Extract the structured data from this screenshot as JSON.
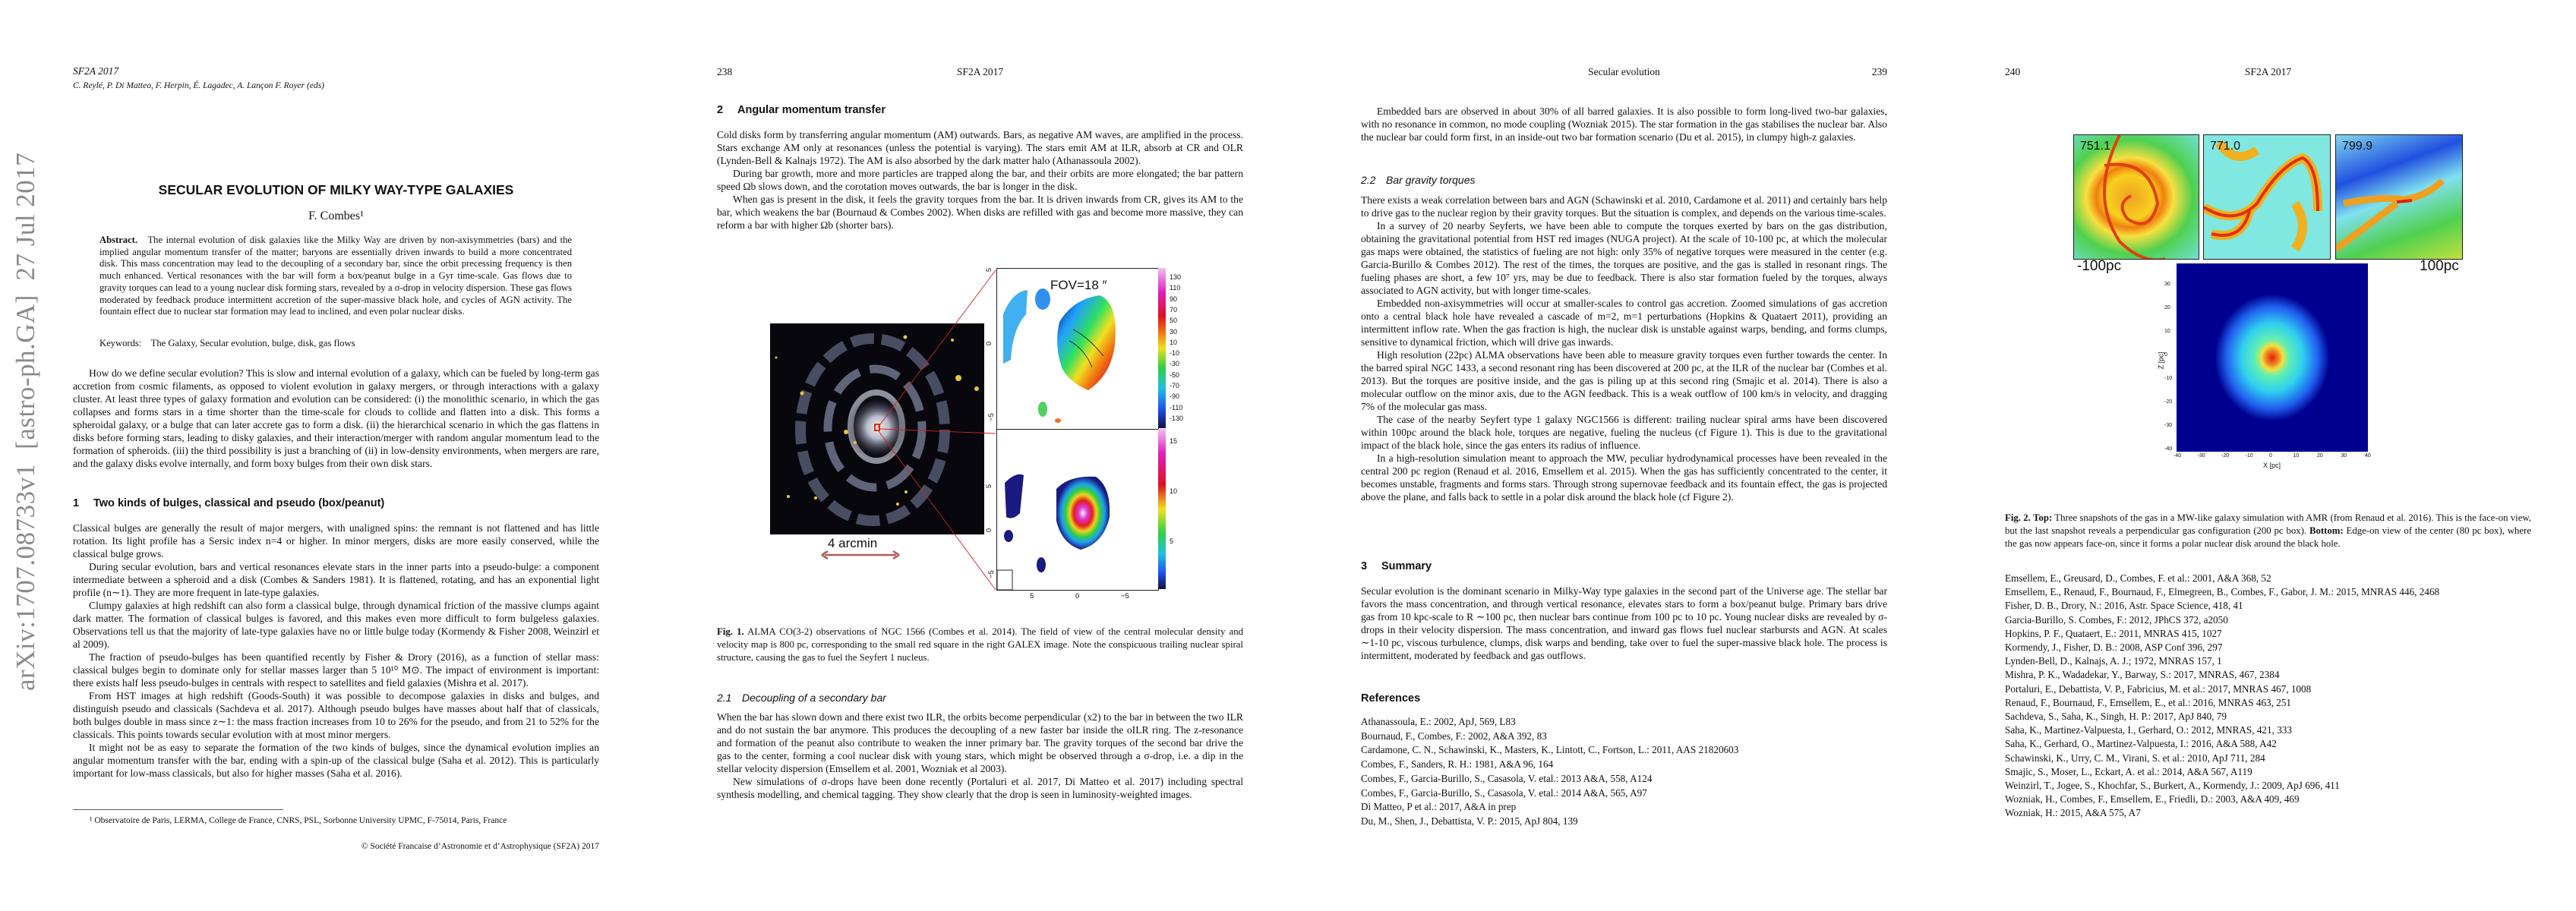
{
  "sidebar": {
    "arxiv_stamp": "arXiv:1707.08733v1  [astro-ph.GA]  27 Jul 2017"
  },
  "page1": {
    "running_head": "SF2A 2017",
    "editors": "C. Reylé, P. Di Matteo, F. Herpin, É. Lagadec, A. Lançon F. Royer (eds)",
    "title": "SECULAR EVOLUTION OF MILKY WAY-TYPE GALAXIES",
    "author": "F. Combes¹",
    "abstract_label": "Abstract.",
    "abstract": "The internal evolution of disk galaxies like the Milky Way are driven by non-axisymmetries (bars) and the implied angular momentum transfer of the matter; baryons are essentially driven inwards to build a more concentrated disk. This mass concentration may lead to the decoupling of a secondary bar, since the orbit precessing frequency is then much enhanced. Vertical resonances with the bar will form a box/peanut bulge in a Gyr time-scale. Gas flows due to gravity torques can lead to a young nuclear disk forming stars, revealed by a σ-drop in velocity dispersion. These gas flows moderated by feedback produce intermittent accretion of the super-massive black hole, and cycles of AGN activity. The fountain effect due to nuclear star formation may lead to inclined, and even polar nuclear disks.",
    "keywords_label": "Keywords:",
    "keywords": "The Galaxy, Secular evolution, bulge, disk, gas flows",
    "intro": "How do we define secular evolution? This is slow and internal evolution of a galaxy, which can be fueled by long-term gas accretion from cosmic filaments, as opposed to violent evolution in galaxy mergers, or through interactions with a galaxy cluster. At least three types of galaxy formation and evolution can be considered: (i) the monolithic scenario, in which the gas collapses and forms stars in a time shorter than the time-scale for clouds to collide and flatten into a disk. This forms a spheroidal galaxy, or a bulge that can later accrete gas to form a disk. (ii) the hierarchical scenario in which the gas flattens in disks before forming stars, leading to disky galaxies, and their interaction/merger with random angular momentum lead to the formation of spheroids. (iii) the third possibility is just a branching of (ii) in low-density environments, when mergers are rare, and the galaxy disks evolve internally, and form boxy bulges from their own disk stars.",
    "section1": {
      "number": "1",
      "title": "Two kinds of bulges, classical and pseudo (box/peanut)",
      "paragraphs": [
        "Classical bulges are generally the result of major mergers, with unaligned spins: the remnant is not flattened and has little rotation. Its light profile has a Sersic index n=4 or higher. In minor mergers, disks are more easily conserved, while the classical bulge grows.",
        "During secular evolution, bars and vertical resonances elevate stars in the inner parts into a pseudo-bulge: a component intermediate between a spheroid and a disk (Combes & Sanders 1981). It is flattened, rotating, and has an exponential light profile (n∼1). They are more frequent in late-type galaxies.",
        "Clumpy galaxies at high redshift can also form a classical bulge, through dynamical friction of the massive clumps againt dark matter. The formation of classical bulges is favored, and this makes even more difficult to form bulgeless galaxies. Observations tell us that the majority of late-type galaxies have no or little bulge today (Kormendy & Fisher 2008, Weinzirl et al 2009).",
        "The fraction of pseudo-bulges has been quantified recently by Fisher & Drory (2016), as a function of stellar mass: classical bulges begin to dominate only for stellar masses larger than 5 10¹⁰ M⊙. The impact of environment is important: there exists half less pseudo-bulges in centrals with respect to satellites and field galaxies (Mishra et al. 2017).",
        "From HST images at high redshift (Goods-South) it was possible to decompose galaxies in disks and bulges, and distinguish pseudo and classicals (Sachdeva et al. 2017). Although pseudo bulges have masses about half that of classicals, both bulges double in mass since z∼1: the mass fraction increases from 10 to 26% for the pseudo, and from 21 to 52% for the classicals. This points towards secular evolution with at most minor mergers.",
        "It might not be as easy to separate the formation of the two kinds of bulges, since the dynamical evolution implies an angular momentum transfer with the bar, ending with a spin-up of the classical bulge (Saha et al. 2012). This is particularly important for low-mass classicals, but also for higher masses (Saha et al. 2016)."
      ]
    },
    "footnote": "¹ Observatoire de Paris, LERMA, College de France, CNRS, PSL, Sorbonne University UPMC, F-75014, Paris, France",
    "copyright": "© Société Francaise d’Astronomie et d’Astrophysique (SF2A) 2017"
  },
  "page2": {
    "page_number": "238",
    "running_head": "SF2A 2017",
    "section2": {
      "number": "2",
      "title": "Angular momentum transfer",
      "paragraphs": [
        "Cold disks form by transferring angular momentum (AM) outwards. Bars, as negative AM waves, are amplified in the process. Stars exchange AM only at resonances (unless the potential is varying). The stars emit AM at ILR, absorb at CR and OLR (Lynden-Bell & Kalnajs 1972). The AM is also absorbed by the dark matter halo (Athanassoula 2002).",
        "During bar growth, more and more particles are trapped along the bar, and their orbits are more elongated; the bar pattern speed Ωb slows down, and the corotation moves outwards, the bar is longer in the disk.",
        "When gas is present in the disk, it feels the gravity torques from the bar. It is driven inwards from CR, gives its AM to the bar, which weakens the bar (Bournaud & Combes 2002). When disks are refilled with gas and become more massive, they can reform a bar with higher Ωb (shorter bars)."
      ]
    },
    "figure1": {
      "fov_label": "FOV=18 ″",
      "scale_label": "4 arcmin",
      "velocity_colorbar": [
        "130",
        "110",
        "90",
        "70",
        "50",
        "30",
        "10",
        "-10",
        "-30",
        "-50",
        "-70",
        "-90",
        "-110",
        "-130"
      ],
      "density_colorbar": [
        "15",
        "10",
        "5"
      ],
      "top_y_ticks": [
        "5",
        "0",
        "−5"
      ],
      "bottom_y_ticks": [
        "5",
        "0",
        "−5"
      ],
      "x_ticks": [
        "5",
        "0",
        "−5"
      ],
      "caption_label": "Fig. 1.",
      "caption": "ALMA CO(3-2) observations of NGC 1566 (Combes et al. 2014). The field of view of the central molecular density and velocity map is 800 pc, corresponding to the small red square in the right GALEX image. Note the conspicuous trailing nuclear spiral structure, causing the gas to fuel the Seyfert 1 nucleus."
    },
    "section2_1": {
      "number": "2.1",
      "title": "Decoupling of a secondary bar",
      "paragraphs": [
        "When the bar has slown down and there exist two ILR, the orbits become perpendicular (x2) to the bar in between the two ILR and do not sustain the bar anymore. This produces the decoupling of a new faster bar inside the oILR ring. The z-resonance and formation of the peanut also contribute to weaken the inner primary bar. The gravity torques of the second bar drive the gas to the center, forming a cool nuclear disk with young stars, which might be observed through a σ-drop, i.e. a dip in the stellar velocity dispersion (Emsellem et al. 2001, Wozniak et al 2003).",
        "New simulations of σ-drops have been done recently (Portaluri et al. 2017, Di Matteo et al. 2017) including spectral synthesis modelling, and chemical tagging. They show clearly that the drop is seen in luminosity-weighted images."
      ]
    }
  },
  "page3": {
    "page_number": "239",
    "running_head": "Secular evolution",
    "intro_paragraph": "Embedded bars are observed in about 30% of all barred galaxies. It is also possible to form long-lived two-bar galaxies, with no resonance in common, no mode coupling (Wozniak 2015). The star formation in the gas stabilises the nuclear bar. Also the nuclear bar could form first, in an inside-out two bar formation scenario (Du et al. 2015), in clumpy high-z galaxies.",
    "section2_2": {
      "number": "2.2",
      "title": "Bar gravity torques",
      "paragraphs": [
        "There exists a weak correlation between bars and AGN (Schawinski et al. 2010, Cardamone et al. 2011) and certainly bars help to drive gas to the nuclear region by their gravity torques. But the situation is complex, and depends on the various time-scales.",
        "In a survey of 20 nearby Seyferts, we have been able to compute the torques exerted by bars on the gas distribution, obtaining the gravitational potential from HST red images (NUGA project). At the scale of 10-100 pc, at which the molecular gas maps were obtained, the statistics of fueling are not high: only 35% of negative torques were measured in the center (e.g. Garcia-Burillo & Combes 2012). The rest of the times, the torques are positive, and the gas is stalled in resonant rings. The fueling phases are short, a few 10⁷ yrs, may be due to feedback. There is also star formation fueled by the torques, always associated to AGN activity, but with longer time-scales.",
        "Embedded non-axisymmetries will occur at smaller-scales to control gas accretion. Zoomed simulations of gas accretion onto a central black hole have revealed a cascade of m=2, m=1 perturbations (Hopkins & Quataert 2011), providing an intermittent inflow rate. When the gas fraction is high, the nuclear disk is unstable against warps, bending, and forms clumps, sensitive to dynamical friction, which will drive gas inwards.",
        "High resolution (22pc) ALMA observations have been able to measure gravity torques even further towards the center. In the barred spiral NGC 1433, a second resonant ring has been discovered at 200 pc, at the ILR of the nuclear bar (Combes et al. 2013). But the torques are positive inside, and the gas is piling up at this second ring (Smajic et al. 2014). There is also a molecular outflow on the minor axis, due to the AGN feedback. This is a weak outflow of 100 km/s in velocity, and dragging 7% of the molecular gas mass.",
        "The case of the nearby Seyfert type 1 galaxy NGC1566 is different: trailing nuclear spiral arms have been discovered within 100pc around the black hole, torques are negative, fueling the nucleus (cf Figure 1). This is due to the gravitational impact of the black hole, since the gas enters its radius of influence.",
        "In a high-resolution simulation meant to approach the MW, peculiar hydrodynamical processes have been revealed in the central 200 pc region (Renaud et al. 2016, Emsellem et al. 2015). When the gas has sufficiently concentrated to the center, it becomes unstable, fragments and forms stars. Through strong supernovae feedback and its fountain effect, the gas is projected above the plane, and falls back to settle in a polar disk around the black hole (cf Figure 2)."
      ]
    },
    "section3": {
      "number": "3",
      "title": "Summary",
      "paragraph": "Secular evolution is the dominant scenario in Milky-Way type galaxies in the second part of the Universe age. The stellar bar favors the mass concentration, and through vertical resonance, elevates stars to form a box/peanut bulge. Primary bars drive gas from 10 kpc-scale to R ∼100 pc, then nuclear bars continue from 100 pc to 10 pc. Young nuclear disks are revealed by σ-drops in their velocity dispersion. The mass concentration, and inward gas flows fuel nuclear starbursts and AGN. At scales ∼1-10 pc, viscous turbulence, clumps, disk warps and bending, take over to fuel the super-massive black hole. The process is intermittent, moderated by feedback and gas outflows."
    },
    "references_title": "References",
    "references": [
      "Athanassoula, E.: 2002, ApJ, 569, L83",
      "Bournaud, F., Combes, F.: 2002, A&A 392, 83",
      "Cardamone, C. N., Schawinski, K., Masters, K., Lintott, C., Fortson, L.: 2011, AAS 21820603",
      "Combes, F., Sanders, R. H.: 1981, A&A 96, 164",
      "Combes, F., Garcia-Burillo, S., Casasola, V. etal.: 2013 A&A, 558, A124",
      "Combes, F., Garcia-Burillo, S., Casasola, V. etal.: 2014 A&A, 565, A97",
      "Di Matteo, P et al.: 2017, A&A in prep",
      "Du, M., Shen, J., Debattista, V. P.: 2015, ApJ 804, 139"
    ]
  },
  "page4": {
    "page_number": "240",
    "running_head": "SF2A 2017",
    "figure2": {
      "snapshot_labels": [
        "751.1",
        "771.0",
        "799.9"
      ],
      "scale_left": "-100pc",
      "scale_right": "100pc",
      "z_ticks": [
        "30",
        "20",
        "10",
        "0",
        "-10",
        "-20",
        "-30",
        "-40"
      ],
      "x_ticks": [
        "-40",
        "-30",
        "-20",
        "-10",
        "0",
        "10",
        "20",
        "30",
        "40"
      ],
      "z_label": "Z [pc]",
      "x_label": "X [pc]",
      "caption_label": "Fig. 2.",
      "caption_top_label": "Top:",
      "caption_part1": "Three snapshots of the gas in a MW-like galaxy simulation with AMR (from Renaud et al. 2016). This is the face-on view, but the last snapshot reveals a perpendicular gas configuration (200 pc box).",
      "caption_bottom_label": "Bottom:",
      "caption_part2": "Edge-on view of the center (80 pc box), where the gas now appears face-on, since it forms a polar nuclear disk around the black hole."
    },
    "references": [
      "Emsellem, E., Greusard, D., Combes, F. et al.: 2001, A&A 368, 52",
      "Emsellem, E., Renaud, F., Bournaud, F., Elmegreen, B., Combes, F., Gabor, J. M.: 2015, MNRAS 446, 2468",
      "Fisher, D. B., Drory, N.: 2016, Astr. Space Science, 418, 41",
      "Garcia-Burillo, S. Combes, F.: 2012, JPhCS 372, a2050",
      "Hopkins, P. F., Quataert, E.: 2011, MNRAS 415, 1027",
      "Kormendy, J., Fisher, D. B.: 2008, ASP Conf 396, 297",
      "Lynden-Bell, D., Kalnajs, A. J.; 1972, MNRAS 157, 1",
      "Mishra, P. K., Wadadekar, Y., Barway, S.: 2017, MNRAS, 467, 2384",
      "Portaluri, E., Debattista, V. P., Fabricius, M. et al.: 2017, MNRAS 467, 1008",
      "Renaud, F., Bournaud, F., Emsellem, E., et al.: 2016, MNRAS 463, 251",
      "Sachdeva, S., Saha, K., Singh, H. P.: 2017, ApJ 840, 79",
      "Saha, K., Martinez-Valpuesta, I., Gerhard, O.: 2012, MNRAS, 421, 333",
      "Saha, K., Gerhard, O., Martinez-Valpuesta, I.: 2016, A&A 588, A42",
      "Schawinski, K., Urry, C. M., Virani, S. et al.: 2010, ApJ 711, 284",
      "Smajic, S., Moser, L., Eckart, A. et al.: 2014, A&A 567, A119",
      "Weinzirl, T., Jogee, S., Khochfar, S., Burkert, A., Kormendy, J.: 2009, ApJ 696, 411",
      "Wozniak, H., Combes, F., Emsellem, E., Friedli, D.: 2003, A&A 409, 469",
      "Wozniak, H.: 2015, A&A 575, A7"
    ]
  }
}
